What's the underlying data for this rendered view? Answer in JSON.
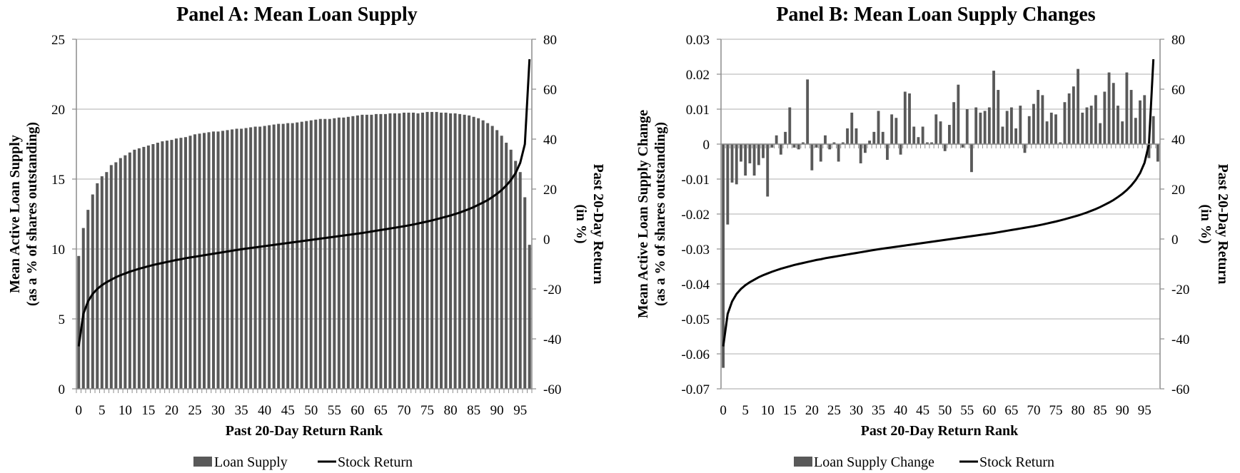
{
  "colors": {
    "bar": "#595959",
    "line": "#000000",
    "grid": "#bfbfbf",
    "axis": "#8c8c8c"
  },
  "chart_data": [
    {
      "type": "bar",
      "title": "Panel A: Mean Loan Supply",
      "xlabel": "Past 20-Day Return Rank",
      "ylabel": "Mean Active Loan Supply",
      "ylabel2": "(as a % of shares outstanding)",
      "y2label": "Past 20-Day Return",
      "y2label2": "(in %)",
      "ylim": [
        0,
        25
      ],
      "yticks": [
        "0",
        "5",
        "10",
        "15",
        "20",
        "25"
      ],
      "y2lim": [
        -60,
        80
      ],
      "y2ticks": [
        "-60",
        "-40",
        "-20",
        "0",
        "20",
        "40",
        "60",
        "80"
      ],
      "xticks": [
        "0",
        "5",
        "10",
        "15",
        "20",
        "25",
        "30",
        "35",
        "40",
        "45",
        "50",
        "55",
        "60",
        "65",
        "70",
        "75",
        "80",
        "85",
        "90",
        "95"
      ],
      "grid": true,
      "legend_position": "bottom",
      "series": [
        {
          "name": "Loan Supply",
          "kind": "bar",
          "axis": "left",
          "values": [
            9.5,
            11.5,
            12.8,
            13.9,
            14.7,
            15.2,
            15.5,
            16.0,
            16.2,
            16.5,
            16.7,
            16.9,
            17.1,
            17.2,
            17.3,
            17.4,
            17.5,
            17.6,
            17.7,
            17.75,
            17.8,
            17.9,
            17.95,
            18.0,
            18.1,
            18.2,
            18.25,
            18.3,
            18.35,
            18.4,
            18.4,
            18.45,
            18.5,
            18.55,
            18.6,
            18.6,
            18.65,
            18.7,
            18.75,
            18.75,
            18.8,
            18.85,
            18.9,
            18.95,
            18.95,
            19.0,
            19.0,
            19.05,
            19.1,
            19.15,
            19.2,
            19.25,
            19.3,
            19.3,
            19.3,
            19.35,
            19.4,
            19.4,
            19.45,
            19.5,
            19.55,
            19.6,
            19.6,
            19.6,
            19.65,
            19.65,
            19.65,
            19.7,
            19.7,
            19.7,
            19.75,
            19.75,
            19.75,
            19.7,
            19.75,
            19.8,
            19.8,
            19.8,
            19.75,
            19.75,
            19.7,
            19.7,
            19.65,
            19.6,
            19.55,
            19.45,
            19.35,
            19.2,
            19.0,
            18.8,
            18.5,
            18.1,
            17.6,
            17.1,
            16.3,
            15.5,
            13.7,
            10.3
          ]
        },
        {
          "name": "Stock Return",
          "kind": "line",
          "axis": "right",
          "values": [
            -43,
            -30,
            -25,
            -22,
            -20,
            -18.5,
            -17.3,
            -16.3,
            -15.3,
            -14.5,
            -13.8,
            -13.1,
            -12.5,
            -11.9,
            -11.4,
            -10.9,
            -10.4,
            -10.0,
            -9.6,
            -9.2,
            -8.8,
            -8.4,
            -8.1,
            -7.7,
            -7.4,
            -7.1,
            -6.8,
            -6.5,
            -6.2,
            -5.9,
            -5.6,
            -5.3,
            -5.0,
            -4.7,
            -4.4,
            -4.1,
            -3.85,
            -3.6,
            -3.35,
            -3.1,
            -2.85,
            -2.6,
            -2.35,
            -2.1,
            -1.85,
            -1.6,
            -1.35,
            -1.1,
            -0.85,
            -0.6,
            -0.35,
            -0.1,
            0.15,
            0.4,
            0.65,
            0.9,
            1.15,
            1.4,
            1.65,
            1.9,
            2.15,
            2.4,
            2.7,
            3.0,
            3.3,
            3.6,
            3.9,
            4.2,
            4.5,
            4.8,
            5.1,
            5.45,
            5.8,
            6.2,
            6.6,
            7.0,
            7.45,
            7.9,
            8.4,
            8.9,
            9.4,
            10.0,
            10.6,
            11.3,
            12.0,
            12.8,
            13.7,
            14.6,
            15.6,
            16.8,
            18.1,
            19.6,
            21.4,
            23.6,
            26.4,
            30.5,
            38,
            72
          ]
        }
      ]
    },
    {
      "type": "bar",
      "title": "Panel B: Mean Loan Supply Changes",
      "xlabel": "Past 20-Day Return Rank",
      "ylabel": "Mean Active Loan Supply   Change",
      "ylabel2": "(as a % of shares outstanding)",
      "y2label": "Past 20-Day Return",
      "y2label2": "(in %)",
      "ylim": [
        -0.07,
        0.03
      ],
      "yticks": [
        "-0.07",
        "-0.06",
        "-0.05",
        "-0.04",
        "-0.03",
        "-0.02",
        "-0.01",
        "0",
        "0.01",
        "0.02",
        "0.03"
      ],
      "y2lim": [
        -60,
        80
      ],
      "y2ticks": [
        "-60",
        "-40",
        "-20",
        "0",
        "20",
        "40",
        "60",
        "80"
      ],
      "xticks": [
        "0",
        "5",
        "10",
        "15",
        "20",
        "25",
        "30",
        "35",
        "40",
        "45",
        "50",
        "55",
        "60",
        "65",
        "70",
        "75",
        "80",
        "85",
        "90",
        "95"
      ],
      "grid": true,
      "legend_position": "bottom",
      "series": [
        {
          "name": "Loan Supply Change",
          "kind": "bar",
          "axis": "left",
          "values": [
            -0.064,
            -0.023,
            -0.011,
            -0.0115,
            -0.005,
            -0.009,
            -0.0055,
            -0.009,
            -0.006,
            -0.004,
            -0.015,
            -0.001,
            0.0025,
            -0.003,
            0.0035,
            0.0105,
            -0.001,
            -0.0015,
            0.0005,
            0.0185,
            -0.0075,
            -0.001,
            -0.005,
            0.0025,
            -0.0015,
            0.0005,
            -0.005,
            0.0005,
            0.0045,
            0.009,
            0.0045,
            -0.0055,
            -0.0025,
            0.001,
            0.0035,
            0.0095,
            0.0035,
            -0.0045,
            0.0085,
            0.0075,
            -0.003,
            0.015,
            0.0145,
            0.005,
            0.002,
            0.005,
            0.0005,
            0.0005,
            0.0085,
            0.0065,
            -0.002,
            0.0055,
            0.012,
            0.017,
            -0.001,
            0.01,
            -0.008,
            0.0105,
            0.009,
            0.0095,
            0.0105,
            0.021,
            0.0155,
            0.005,
            0.0095,
            0.0105,
            0.0045,
            0.011,
            -0.0025,
            0.008,
            0.0115,
            0.0155,
            0.014,
            0.0065,
            0.009,
            0.0085,
            0.0005,
            0.012,
            0.0145,
            0.0165,
            0.0215,
            0.009,
            0.0105,
            0.011,
            0.014,
            0.006,
            0.015,
            0.0205,
            0.0175,
            0.011,
            0.0065,
            0.0205,
            0.0155,
            0.0075,
            0.0125,
            0.014,
            -0.004,
            0.008,
            -0.005
          ]
        },
        {
          "name": "Stock Return",
          "kind": "line",
          "axis": "right",
          "values": [
            -43,
            -30,
            -25,
            -22,
            -20,
            -18.5,
            -17.3,
            -16.3,
            -15.3,
            -14.5,
            -13.8,
            -13.1,
            -12.5,
            -11.9,
            -11.4,
            -10.9,
            -10.4,
            -10.0,
            -9.6,
            -9.2,
            -8.8,
            -8.4,
            -8.1,
            -7.7,
            -7.4,
            -7.1,
            -6.8,
            -6.5,
            -6.2,
            -5.9,
            -5.6,
            -5.3,
            -5.0,
            -4.7,
            -4.4,
            -4.1,
            -3.85,
            -3.6,
            -3.35,
            -3.1,
            -2.85,
            -2.6,
            -2.35,
            -2.1,
            -1.85,
            -1.6,
            -1.35,
            -1.1,
            -0.85,
            -0.6,
            -0.35,
            -0.1,
            0.15,
            0.4,
            0.65,
            0.9,
            1.15,
            1.4,
            1.65,
            1.9,
            2.15,
            2.4,
            2.7,
            3.0,
            3.3,
            3.6,
            3.9,
            4.2,
            4.5,
            4.8,
            5.1,
            5.45,
            5.8,
            6.2,
            6.6,
            7.0,
            7.45,
            7.9,
            8.4,
            8.9,
            9.4,
            10.0,
            10.6,
            11.3,
            12.0,
            12.8,
            13.7,
            14.6,
            15.6,
            16.8,
            18.1,
            19.6,
            21.4,
            23.6,
            26.4,
            30.5,
            38,
            72
          ]
        }
      ]
    }
  ]
}
